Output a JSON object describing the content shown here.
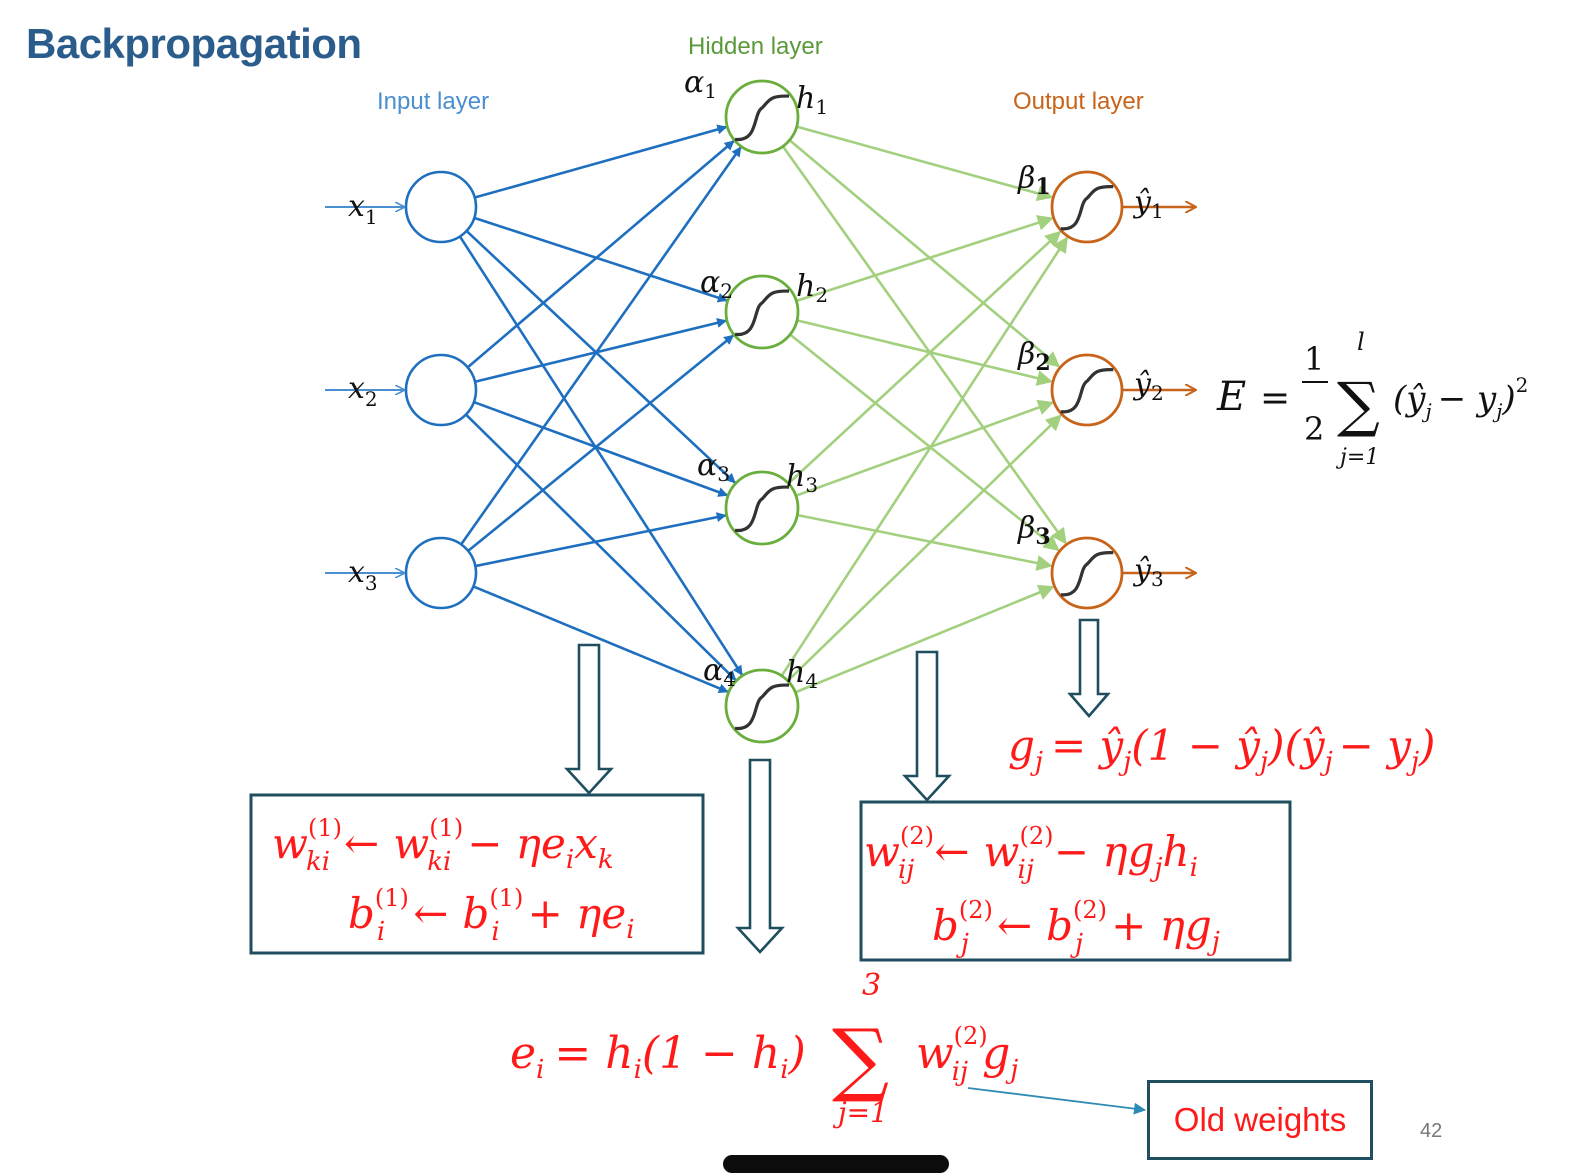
{
  "title": "Backpropagation",
  "layers": {
    "input": "Input layer",
    "hidden": "Hidden layer",
    "output": "Output layer"
  },
  "inputs": [
    "x",
    "x",
    "x"
  ],
  "input_subs": [
    "1",
    "2",
    "3"
  ],
  "hidden_alpha": [
    "α",
    "α",
    "α",
    "α"
  ],
  "hidden_h": [
    "h",
    "h",
    "h",
    "h"
  ],
  "hidden_subs": [
    "1",
    "2",
    "3",
    "4"
  ],
  "output_beta": [
    "β",
    "β",
    "β"
  ],
  "output_y": [
    "ŷ",
    "ŷ",
    "ŷ"
  ],
  "output_subs": [
    "1",
    "2",
    "3"
  ],
  "error_formula": {
    "lhs": "E",
    "eq": "=",
    "frac_num": "1",
    "frac_den": "2",
    "sum": "∑",
    "upper": "l",
    "lower": "j=1",
    "body": "(ŷ",
    "body_j": "j",
    "minus": "− y",
    "close": ")",
    "power": "2"
  },
  "g_formula": "g_j = ŷ_j(1 − ŷ_j)(ŷ_j − y_j)",
  "g_parts": {
    "g": "g",
    "j": "j",
    "rest": "= ŷ",
    "p1": "(1 − ŷ",
    "p2": ")(ŷ",
    "p3": "− y",
    "p4": ")"
  },
  "box1": {
    "line1": {
      "w": "w",
      "sup": "(1)",
      "sub": "ki",
      "arrow": "←",
      "w2": "w",
      "rest": "− ηe",
      "i": "i",
      "x": "x",
      "k": "k"
    },
    "line2": {
      "b": "b",
      "sup": "(1)",
      "sub": "i",
      "arrow": "←",
      "b2": "b",
      "rest": "+ ηe",
      "i": "i"
    }
  },
  "box2": {
    "line1": {
      "w": "w",
      "sup": "(2)",
      "sub": "ij",
      "arrow": "←",
      "w2": "w",
      "rest": "− ηg",
      "j": "j",
      "h": "h",
      "i": "i"
    },
    "line2": {
      "b": "b",
      "sup": "(2)",
      "sub": "j",
      "arrow": "←",
      "b2": "b",
      "rest": "+ ηg",
      "j": "j"
    }
  },
  "e_formula": {
    "e": "e",
    "i": "i",
    "eq": "= h",
    "p1": "(1 − h",
    "p2": ")",
    "sum": "∑",
    "upper": "3",
    "lower": "j=1",
    "w": "w",
    "sup": "(2)",
    "sub": "ij",
    "g": "g",
    "j": "j"
  },
  "old_weights": "Old weights",
  "page_number": "42",
  "colors": {
    "title": "#2a5d8c",
    "input": "#1f6fc0",
    "input_label": "#4a8fd0",
    "hidden": "#6aae3d",
    "hidden_edges": "#a3d07f",
    "output": "#c8631a",
    "formula_red": "#ff1a1a",
    "box_border": "#1f4e5f",
    "arrow_outline": "#1f4e5f"
  }
}
